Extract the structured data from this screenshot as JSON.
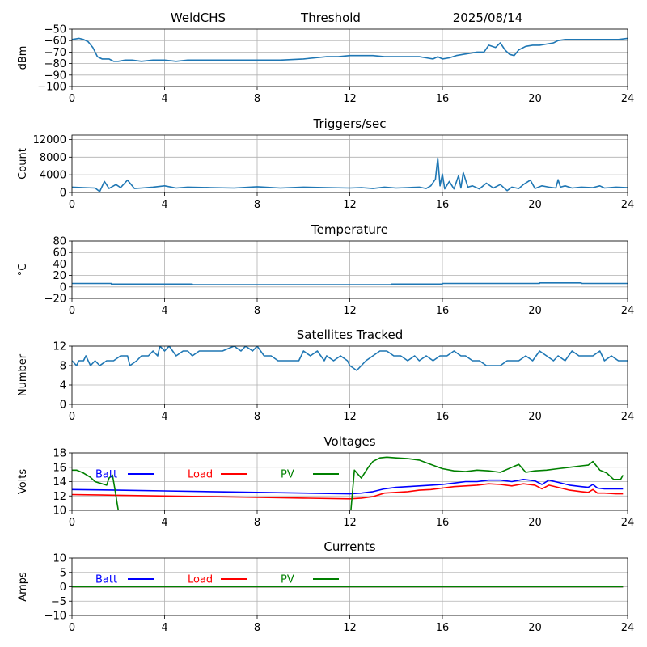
{
  "header": {
    "station": "WeldCHS",
    "mode": "Threshold",
    "date": "2025/08/14"
  },
  "colors": {
    "default": "#1f77b4",
    "batt": "#0000ff",
    "load": "#ff0000",
    "pv": "#008000"
  },
  "chart_data": [
    {
      "id": "rssi",
      "type": "line",
      "title": "",
      "ylabel": "dBm",
      "xlim": [
        0,
        24
      ],
      "ylim": [
        -100,
        -50
      ],
      "xticks": [
        0,
        4,
        8,
        12,
        16,
        20,
        24
      ],
      "yticks": [
        -100,
        -90,
        -80,
        -70,
        -60,
        -50
      ],
      "series": [
        {
          "color": "#1f77b4",
          "x": [
            0,
            0.3,
            0.5,
            0.7,
            0.9,
            1.1,
            1.3,
            1.6,
            1.8,
            2.0,
            2.3,
            2.6,
            3.0,
            3.5,
            4.0,
            4.5,
            5.0,
            5.5,
            6.0,
            7.0,
            8.0,
            9.0,
            10.0,
            10.5,
            11.0,
            11.5,
            12.0,
            12.5,
            13.0,
            13.5,
            14.0,
            14.5,
            15.0,
            15.3,
            15.6,
            15.8,
            16.0,
            16.3,
            16.6,
            16.9,
            17.2,
            17.5,
            17.8,
            18.0,
            18.3,
            18.5,
            18.7,
            18.9,
            19.1,
            19.3,
            19.6,
            19.9,
            20.2,
            20.5,
            20.8,
            21.0,
            21.3,
            21.6,
            22.0,
            22.4,
            22.8,
            23.2,
            23.6,
            24.0
          ],
          "y": [
            -59,
            -58,
            -59,
            -61,
            -66,
            -74,
            -76,
            -76,
            -78,
            -78,
            -77,
            -77,
            -78,
            -77,
            -77,
            -78,
            -77,
            -77,
            -77,
            -77,
            -77,
            -77,
            -76,
            -75,
            -74,
            -74,
            -73,
            -73,
            -73,
            -74,
            -74,
            -74,
            -74,
            -75,
            -76,
            -74,
            -76,
            -75,
            -73,
            -72,
            -71,
            -70,
            -70,
            -64,
            -66,
            -62,
            -68,
            -72,
            -73,
            -68,
            -65,
            -64,
            -64,
            -63,
            -62,
            -60,
            -59,
            -59,
            -59,
            -59,
            -59,
            -59,
            -59,
            -58
          ]
        }
      ]
    },
    {
      "id": "triggers",
      "type": "line",
      "title": "Triggers/sec",
      "ylabel": "Count",
      "xlim": [
        0,
        24
      ],
      "ylim": [
        0,
        13000
      ],
      "xticks": [
        0,
        4,
        8,
        12,
        16,
        20,
        24
      ],
      "yticks": [
        0,
        4000,
        8000,
        12000
      ],
      "series": [
        {
          "color": "#1f77b4",
          "x": [
            0,
            0.5,
            1.0,
            1.2,
            1.4,
            1.6,
            1.9,
            2.1,
            2.4,
            2.7,
            3.0,
            3.5,
            4.0,
            4.5,
            5.0,
            6.0,
            7.0,
            8.0,
            9.0,
            10.0,
            11.0,
            12.0,
            12.5,
            13.0,
            13.5,
            14.0,
            14.5,
            15.0,
            15.3,
            15.5,
            15.7,
            15.8,
            15.9,
            16.0,
            16.1,
            16.3,
            16.5,
            16.7,
            16.8,
            16.9,
            17.1,
            17.3,
            17.6,
            17.9,
            18.2,
            18.5,
            18.8,
            19.0,
            19.3,
            19.5,
            19.8,
            20.0,
            20.3,
            20.6,
            20.9,
            21.0,
            21.1,
            21.3,
            21.6,
            22.0,
            22.5,
            22.8,
            23.0,
            23.5,
            24.0
          ],
          "y": [
            1200,
            1100,
            1000,
            200,
            2500,
            900,
            1800,
            1100,
            2800,
            900,
            1000,
            1200,
            1500,
            1000,
            1200,
            1100,
            1000,
            1300,
            1000,
            1200,
            1100,
            1000,
            1100,
            900,
            1200,
            1000,
            1100,
            1200,
            900,
            1500,
            3000,
            7800,
            1500,
            4200,
            800,
            2500,
            800,
            3800,
            1000,
            4500,
            1200,
            1500,
            800,
            2100,
            1000,
            1800,
            400,
            1200,
            900,
            1800,
            2800,
            900,
            1500,
            1200,
            1000,
            2900,
            1200,
            1500,
            1000,
            1200,
            1100,
            1500,
            1000,
            1200,
            1100
          ]
        }
      ]
    },
    {
      "id": "temperature",
      "type": "line",
      "title": "Temperature",
      "ylabel": "°C",
      "xlim": [
        0,
        24
      ],
      "ylim": [
        -20,
        80
      ],
      "xticks": [
        0,
        4,
        8,
        12,
        16,
        20,
        24
      ],
      "yticks": [
        -20,
        0,
        20,
        40,
        60,
        80
      ],
      "series": [
        {
          "color": "#1f77b4",
          "x": [
            0,
            1.7,
            1.7,
            5.2,
            5.2,
            13.8,
            13.8,
            16.0,
            16.0,
            20.2,
            20.2,
            20.8,
            20.8,
            22.0,
            22.0,
            24.0
          ],
          "y": [
            6,
            6,
            5,
            5,
            4,
            4,
            5,
            5,
            6,
            6,
            7,
            7,
            7,
            7,
            6,
            6
          ]
        }
      ]
    },
    {
      "id": "satellites",
      "type": "line",
      "title": "Satellites Tracked",
      "ylabel": "Number",
      "xlim": [
        0,
        24
      ],
      "ylim": [
        0,
        12
      ],
      "xticks": [
        0,
        4,
        8,
        12,
        16,
        20,
        24
      ],
      "yticks": [
        0,
        4,
        8,
        12
      ],
      "series": [
        {
          "color": "#1f77b4",
          "x": [
            0,
            0.2,
            0.3,
            0.5,
            0.6,
            0.8,
            1.0,
            1.2,
            1.5,
            1.8,
            2.1,
            2.4,
            2.5,
            2.8,
            3.0,
            3.3,
            3.5,
            3.7,
            3.8,
            4.0,
            4.2,
            4.5,
            4.8,
            5.0,
            5.2,
            5.5,
            6.0,
            6.5,
            7.0,
            7.3,
            7.5,
            7.8,
            8.0,
            8.3,
            8.6,
            8.9,
            9.0,
            9.5,
            9.8,
            10.0,
            10.3,
            10.6,
            10.9,
            11.0,
            11.3,
            11.6,
            11.9,
            12.0,
            12.3,
            12.5,
            12.7,
            13.0,
            13.3,
            13.6,
            13.9,
            14.2,
            14.5,
            14.8,
            15.0,
            15.3,
            15.6,
            15.9,
            16.2,
            16.5,
            16.8,
            17.0,
            17.3,
            17.6,
            17.9,
            18.2,
            18.5,
            18.8,
            19.0,
            19.3,
            19.6,
            19.9,
            20.2,
            20.5,
            20.8,
            21.0,
            21.3,
            21.6,
            21.9,
            22.2,
            22.5,
            22.8,
            23.0,
            23.3,
            23.6,
            24.0
          ],
          "y": [
            9,
            8,
            9,
            9,
            10,
            8,
            9,
            8,
            9,
            9,
            10,
            10,
            8,
            9,
            10,
            10,
            11,
            10,
            12,
            11,
            12,
            10,
            11,
            11,
            10,
            11,
            11,
            11,
            12,
            11,
            12,
            11,
            12,
            10,
            10,
            9,
            9,
            9,
            9,
            11,
            10,
            11,
            9,
            10,
            9,
            10,
            9,
            8,
            7,
            8,
            9,
            10,
            11,
            11,
            10,
            10,
            9,
            10,
            9,
            10,
            9,
            10,
            10,
            11,
            10,
            10,
            9,
            9,
            8,
            8,
            8,
            9,
            9,
            9,
            10,
            9,
            11,
            10,
            9,
            10,
            9,
            11,
            10,
            10,
            10,
            11,
            9,
            10,
            9,
            9
          ]
        }
      ]
    },
    {
      "id": "voltages",
      "type": "line",
      "title": "Voltages",
      "ylabel": "Volts",
      "xlim": [
        0,
        24
      ],
      "ylim": [
        10,
        18
      ],
      "xticks": [
        0,
        4,
        8,
        12,
        16,
        20,
        24
      ],
      "yticks": [
        10,
        12,
        14,
        16,
        18
      ],
      "legend": [
        "Batt",
        "Load",
        "PV"
      ],
      "series": [
        {
          "name": "Batt",
          "color": "#0000ff",
          "x": [
            0,
            2,
            4,
            6,
            8,
            10,
            12,
            12.5,
            13.0,
            13.5,
            14.0,
            14.5,
            15.0,
            15.5,
            16.0,
            16.5,
            17.0,
            17.5,
            18.0,
            18.5,
            19.0,
            19.5,
            20.0,
            20.3,
            20.6,
            21.0,
            21.5,
            22.0,
            22.3,
            22.5,
            22.7,
            23.0,
            23.5,
            23.8
          ],
          "y": [
            12.9,
            12.8,
            12.7,
            12.6,
            12.5,
            12.4,
            12.3,
            12.4,
            12.6,
            13.0,
            13.2,
            13.3,
            13.4,
            13.5,
            13.6,
            13.8,
            14.0,
            14.0,
            14.2,
            14.2,
            14.0,
            14.3,
            14.1,
            13.6,
            14.2,
            13.9,
            13.5,
            13.3,
            13.2,
            13.6,
            13.1,
            13.0,
            13.0,
            13.0
          ]
        },
        {
          "name": "Load",
          "color": "#ff0000",
          "x": [
            0,
            2,
            4,
            6,
            8,
            10,
            12,
            12.5,
            13.0,
            13.5,
            14.0,
            14.5,
            15.0,
            15.5,
            16.0,
            16.5,
            17.0,
            17.5,
            18.0,
            18.5,
            19.0,
            19.5,
            20.0,
            20.3,
            20.6,
            21.0,
            21.5,
            22.0,
            22.3,
            22.5,
            22.7,
            23.0,
            23.5,
            23.8
          ],
          "y": [
            12.2,
            12.1,
            12.0,
            11.9,
            11.8,
            11.7,
            11.6,
            11.7,
            11.9,
            12.4,
            12.5,
            12.6,
            12.8,
            12.9,
            13.1,
            13.3,
            13.4,
            13.5,
            13.7,
            13.6,
            13.4,
            13.7,
            13.5,
            13.0,
            13.5,
            13.2,
            12.8,
            12.6,
            12.5,
            12.9,
            12.4,
            12.4,
            12.3,
            12.3
          ]
        },
        {
          "name": "PV",
          "color": "#008000",
          "x": [
            0,
            0.2,
            0.5,
            0.8,
            1.0,
            1.2,
            1.5,
            1.6,
            1.75,
            1.85,
            1.95,
            2.0,
            12.05,
            12.2,
            12.5,
            12.8,
            13.0,
            13.3,
            13.6,
            14.0,
            14.5,
            15.0,
            15.5,
            16.0,
            16.5,
            17.0,
            17.5,
            18.0,
            18.5,
            19.0,
            19.3,
            19.6,
            20.0,
            20.5,
            21.0,
            21.5,
            22.0,
            22.3,
            22.5,
            22.8,
            23.1,
            23.4,
            23.7,
            23.8
          ],
          "y": [
            15.6,
            15.6,
            15.2,
            14.6,
            14.0,
            13.8,
            13.5,
            14.5,
            14.9,
            13.0,
            11.0,
            10.0,
            10.0,
            15.6,
            14.5,
            16.0,
            16.8,
            17.3,
            17.4,
            17.3,
            17.2,
            17.0,
            16.4,
            15.8,
            15.5,
            15.4,
            15.6,
            15.5,
            15.3,
            16.0,
            16.4,
            15.3,
            15.5,
            15.6,
            15.8,
            16.0,
            16.2,
            16.3,
            16.8,
            15.6,
            15.2,
            14.3,
            14.3,
            14.9
          ]
        }
      ]
    },
    {
      "id": "currents",
      "type": "line",
      "title": "Currents",
      "ylabel": "Amps",
      "xlim": [
        0,
        24
      ],
      "ylim": [
        -10,
        10
      ],
      "xticks": [
        0,
        4,
        8,
        12,
        16,
        20,
        24
      ],
      "yticks": [
        -10,
        -5,
        0,
        5,
        10
      ],
      "legend": [
        "Batt",
        "Load",
        "PV"
      ],
      "series": [
        {
          "name": "Batt",
          "color": "#0000ff",
          "x": [
            0,
            23.8
          ],
          "y": [
            0,
            0
          ]
        },
        {
          "name": "Load",
          "color": "#ff0000",
          "x": [
            0,
            23.8
          ],
          "y": [
            0,
            0
          ]
        },
        {
          "name": "PV",
          "color": "#008000",
          "x": [
            0,
            23.8
          ],
          "y": [
            0,
            0
          ]
        }
      ]
    }
  ]
}
